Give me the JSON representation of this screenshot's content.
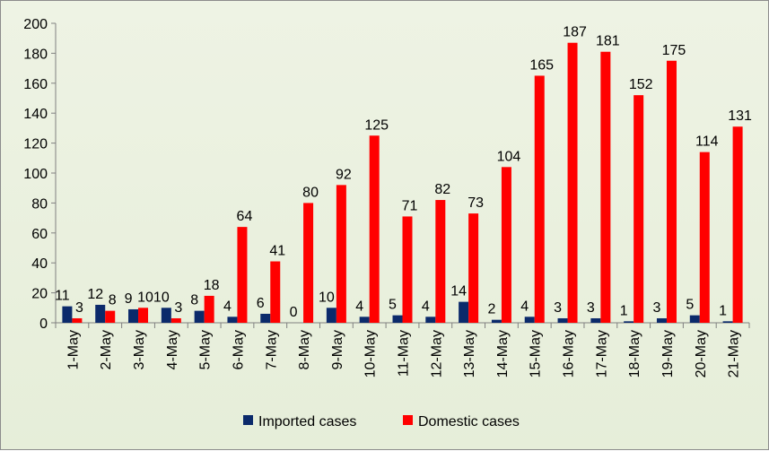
{
  "chart_data": {
    "type": "bar",
    "categories": [
      "1-May",
      "2-May",
      "3-May",
      "4-May",
      "5-May",
      "6-May",
      "7-May",
      "8-May",
      "9-May",
      "10-May",
      "11-May",
      "12-May",
      "13-May",
      "14-May",
      "15-May",
      "16-May",
      "17-May",
      "18-May",
      "19-May",
      "20-May",
      "21-May"
    ],
    "series": [
      {
        "name": "Imported cases",
        "color": "#0b2a6b",
        "values": [
          11,
          12,
          9,
          10,
          8,
          4,
          6,
          0,
          10,
          4,
          5,
          4,
          14,
          2,
          4,
          3,
          3,
          1,
          3,
          5,
          1
        ]
      },
      {
        "name": "Domestic cases",
        "color": "#ff0000",
        "values": [
          3,
          8,
          10,
          3,
          18,
          64,
          41,
          80,
          92,
          125,
          71,
          82,
          73,
          104,
          165,
          187,
          181,
          152,
          175,
          114,
          131
        ]
      }
    ],
    "ylim": [
      0,
      200
    ],
    "yticks": [
      0,
      20,
      40,
      60,
      80,
      100,
      120,
      140,
      160,
      180,
      200
    ],
    "grid": false,
    "legend_position": "bottom",
    "data_labels": true
  }
}
